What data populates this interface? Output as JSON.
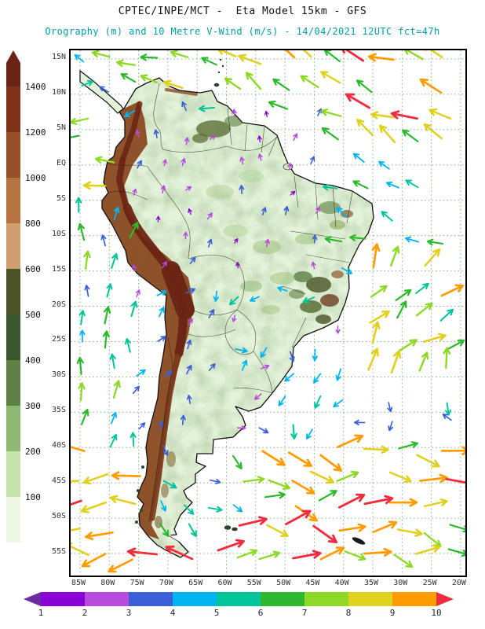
{
  "header": {
    "title_line1": "CPTEC/INPE/MCT -  Eta Model 15km - GFS",
    "title_line2": "Orography (m) and 10 Metre V-Wind (m/s) - 14/04/2021 12UTC fct=47h"
  },
  "chart_data": {
    "type": "map-vector-field",
    "title": "CPTEC/INPE/MCT - Eta Model 15km - GFS",
    "subtitle": "Orography (m) and 10 Metre V-Wind (m/s) - 14/04/2021 12UTC fct=47h",
    "model": "Eta Model 15km - GFS",
    "fields": [
      "Orography (m)",
      "10 Metre V-Wind (m/s)"
    ],
    "valid": "14/04/2021 12UTC fct=47h",
    "region": "South America",
    "lat_ticks": [
      "15N",
      "10N",
      "5N",
      "EQ",
      "5S",
      "10S",
      "15S",
      "20S",
      "25S",
      "30S",
      "35S",
      "40S",
      "45S",
      "50S",
      "55S"
    ],
    "lon_ticks": [
      "85W",
      "80W",
      "75W",
      "70W",
      "65W",
      "60W",
      "55W",
      "50W",
      "45W",
      "40W",
      "35W",
      "30W",
      "25W",
      "20W"
    ],
    "orography_scale": {
      "units": "m",
      "labels": [
        "1400",
        "1200",
        "1000",
        "800",
        "600",
        "500",
        "400",
        "300",
        "200",
        "100"
      ],
      "colors_top_to_bottom": [
        "#6b2413",
        "#7e3318",
        "#96502a",
        "#b5743f",
        "#d09f70",
        "#4a5226",
        "#39572f",
        "#5f8047",
        "#8fb873",
        "#c4e4ab",
        "#eef8e4"
      ]
    },
    "wind_scale": {
      "units": "m/s",
      "labels": [
        "1",
        "2",
        "3",
        "4",
        "5",
        "6",
        "7",
        "8",
        "9",
        "10"
      ],
      "under_color": "#6a2ca0",
      "over_color": "#ef2c3f",
      "colors": [
        "#8b00d4",
        "#b84ae0",
        "#3a5fd9",
        "#00b4f0",
        "#00c49a",
        "#2db82d",
        "#8ed926",
        "#e0d020",
        "#ff9c00"
      ]
    },
    "wind_speed_colors": [
      "#8b00d4",
      "#b84ae0",
      "#3a5fd9",
      "#00b4f0",
      "#00c49a",
      "#2db82d",
      "#8ed926",
      "#e0d020",
      "#ff9c00",
      "#ef2c3f"
    ],
    "wind_field": {
      "seed": 11,
      "grid_step": 33,
      "default": {
        "name": "open-ocean",
        "speed": [
          2,
          5
        ],
        "dir": [
          0,
          360
        ],
        "skip": 0.3,
        "scale": 0.9
      },
      "regions": [
        {
          "name": "amazon-light-winds",
          "lon": [
            -76,
            -44
          ],
          "lat": [
            7,
            -16
          ],
          "speed": [
            1,
            3
          ],
          "dir": [
            250,
            330
          ],
          "skip": 0.25,
          "scale": 0.8
        },
        {
          "name": "central-brazil",
          "lon": [
            -62,
            -40
          ],
          "lat": [
            -16,
            -26
          ],
          "speed": [
            1,
            5
          ],
          "dir": [
            60,
            200
          ],
          "skip": 0.2,
          "scale": 0.85
        },
        {
          "name": "andes-south",
          "lon": [
            -76,
            -62
          ],
          "lat": [
            -16,
            -38
          ],
          "speed": [
            2,
            4
          ],
          "dir": [
            260,
            340
          ],
          "skip": 0.2,
          "scale": 0.85
        },
        {
          "name": "patagonia-region",
          "lon": [
            -72,
            -58
          ],
          "lat": [
            -38,
            -52
          ],
          "speed": [
            3,
            6
          ],
          "dir": [
            10,
            70
          ],
          "skip": 0.15,
          "scale": 0.95
        },
        {
          "name": "n-atlantic-trades",
          "lon": [
            -56,
            -18
          ],
          "lat": [
            16,
            3
          ],
          "speed": [
            6,
            10
          ],
          "dir": [
            185,
            230
          ],
          "skip": 0.1,
          "scale": 1.15
        },
        {
          "name": "caribbean-offshore",
          "lon": [
            -80,
            -56
          ],
          "lat": [
            16,
            8
          ],
          "speed": [
            5,
            8
          ],
          "dir": [
            170,
            215
          ],
          "skip": 0.12,
          "scale": 1.0
        },
        {
          "name": "pacific-equatorial",
          "lon": [
            -88,
            -78
          ],
          "lat": [
            8,
            -6
          ],
          "speed": [
            6,
            9
          ],
          "dir": [
            165,
            205
          ],
          "skip": 0.12,
          "scale": 1.05
        },
        {
          "name": "equatorial-atlantic",
          "lon": [
            -46,
            -18
          ],
          "lat": [
            3,
            -13
          ],
          "speed": [
            4,
            7
          ],
          "dir": [
            185,
            225
          ],
          "skip": 0.12,
          "scale": 1.0
        },
        {
          "name": "se-atlantic-high",
          "lon": [
            -40,
            -18
          ],
          "lat": [
            -13,
            -33
          ],
          "speed": [
            5,
            9
          ],
          "dir": [
            265,
            345
          ],
          "skip": 0.12,
          "scale": 1.1
        },
        {
          "name": "south-brazil-coast",
          "lon": [
            -54,
            -40
          ],
          "lat": [
            -26,
            -38
          ],
          "speed": [
            3,
            6
          ],
          "dir": [
            70,
            150
          ],
          "skip": 0.15,
          "scale": 0.95
        },
        {
          "name": "pacific-coast",
          "lon": [
            -88,
            -70
          ],
          "lat": [
            -6,
            -40
          ],
          "speed": [
            3,
            7
          ],
          "dir": [
            255,
            300
          ],
          "skip": 0.12,
          "scale": 1.0
        },
        {
          "name": "southern-pacific-storm",
          "lon": [
            -88,
            -62
          ],
          "lat": [
            -40,
            -57
          ],
          "speed": [
            8,
            10
          ],
          "dir": [
            150,
            210
          ],
          "skip": 0.1,
          "scale": 1.25
        },
        {
          "name": "southern-atlantic-westerlies",
          "lon": [
            -62,
            -18
          ],
          "lat": [
            -38,
            -57
          ],
          "speed": [
            6,
            10
          ],
          "dir": [
            330,
            400
          ],
          "skip": 0.1,
          "scale": 1.2
        }
      ]
    }
  }
}
